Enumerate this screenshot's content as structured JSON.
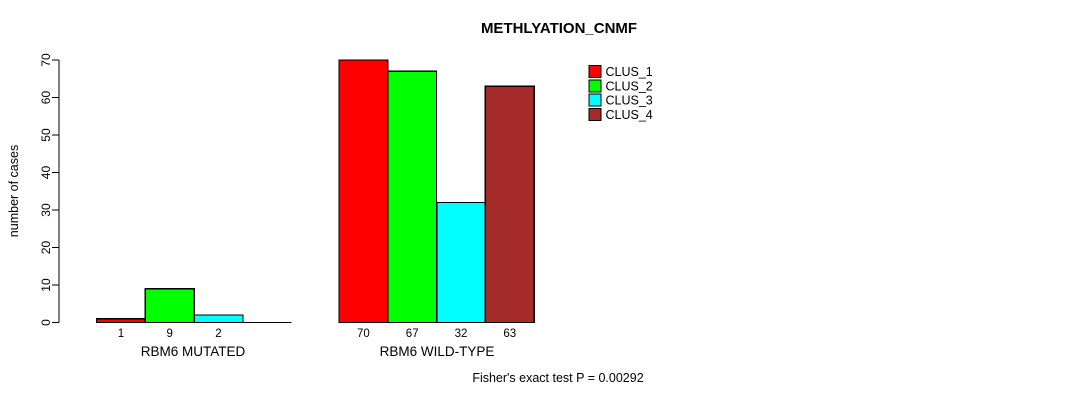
{
  "title": "METHLYATION_CNMF",
  "y_axis": {
    "label": "number of cases",
    "tick_labels": [
      "0",
      "10",
      "20",
      "30",
      "40",
      "50",
      "60",
      "70"
    ]
  },
  "footnote": "Fisher's exact test P = 0.00292",
  "legend": {
    "items": [
      {
        "label": "CLUS_1",
        "color": "#FF0000"
      },
      {
        "label": "CLUS_2",
        "color": "#00FF00"
      },
      {
        "label": "CLUS_3",
        "color": "#00FFFF"
      },
      {
        "label": "CLUS_4",
        "color": "#A52A2A"
      }
    ]
  },
  "chart_data": {
    "type": "bar",
    "title": "METHLYATION_CNMF",
    "xlabel": "",
    "ylabel": "number of cases",
    "ylim": [
      0,
      70
    ],
    "yticks": [
      0,
      10,
      20,
      30,
      40,
      50,
      60,
      70
    ],
    "grid": false,
    "legend_position": "top-right",
    "bar_edge_color": "#000000",
    "categories": [
      "RBM6 MUTATED",
      "RBM6 WILD-TYPE"
    ],
    "series": [
      {
        "name": "CLUS_1",
        "color": "#FF0000",
        "values": [
          1,
          70
        ]
      },
      {
        "name": "CLUS_2",
        "color": "#00FF00",
        "values": [
          9,
          67
        ]
      },
      {
        "name": "CLUS_3",
        "color": "#00FFFF",
        "values": [
          2,
          32
        ]
      },
      {
        "name": "CLUS_4",
        "color": "#A52A2A",
        "values": [
          0,
          63
        ]
      }
    ],
    "bar_value_labels": [
      [
        "1",
        "9",
        "2",
        null
      ],
      [
        "70",
        "67",
        "32",
        "63"
      ]
    ],
    "annotation": "Fisher's exact test P = 0.00292"
  }
}
